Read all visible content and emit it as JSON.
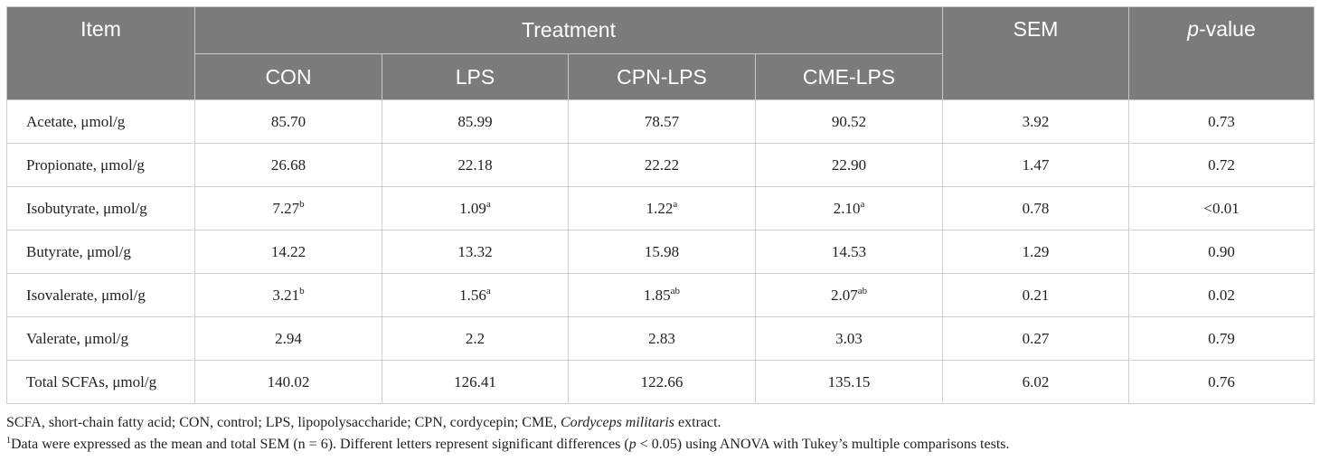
{
  "header": {
    "item": "Item",
    "treatment": "Treatment",
    "sem": "SEM",
    "pvalue_italic": "p",
    "pvalue_rest": "-value",
    "groups": [
      "CON",
      "LPS",
      "CPN-LPS",
      "CME-LPS"
    ]
  },
  "rows": [
    {
      "item": "Acetate, μmol/g",
      "values": [
        {
          "v": "85.70",
          "s": ""
        },
        {
          "v": "85.99",
          "s": ""
        },
        {
          "v": "78.57",
          "s": ""
        },
        {
          "v": "90.52",
          "s": ""
        }
      ],
      "sem": "3.92",
      "p": "0.73"
    },
    {
      "item": "Propionate, μmol/g",
      "values": [
        {
          "v": "26.68",
          "s": ""
        },
        {
          "v": "22.18",
          "s": ""
        },
        {
          "v": "22.22",
          "s": ""
        },
        {
          "v": "22.90",
          "s": ""
        }
      ],
      "sem": "1.47",
      "p": "0.72"
    },
    {
      "item": "Isobutyrate, μmol/g",
      "values": [
        {
          "v": "7.27",
          "s": "b"
        },
        {
          "v": "1.09",
          "s": "a"
        },
        {
          "v": "1.22",
          "s": "a"
        },
        {
          "v": "2.10",
          "s": "a"
        }
      ],
      "sem": "0.78",
      "p": "<0.01"
    },
    {
      "item": "Butyrate, μmol/g",
      "values": [
        {
          "v": "14.22",
          "s": ""
        },
        {
          "v": "13.32",
          "s": ""
        },
        {
          "v": "15.98",
          "s": ""
        },
        {
          "v": "14.53",
          "s": ""
        }
      ],
      "sem": "1.29",
      "p": "0.90"
    },
    {
      "item": "Isovalerate, μmol/g",
      "values": [
        {
          "v": "3.21",
          "s": "b"
        },
        {
          "v": "1.56",
          "s": "a"
        },
        {
          "v": "1.85",
          "s": "ab"
        },
        {
          "v": "2.07",
          "s": "ab"
        }
      ],
      "sem": "0.21",
      "p": "0.02"
    },
    {
      "item": "Valerate, μmol/g",
      "values": [
        {
          "v": "2.94",
          "s": ""
        },
        {
          "v": "2.2",
          "s": ""
        },
        {
          "v": "2.83",
          "s": ""
        },
        {
          "v": "3.03",
          "s": ""
        }
      ],
      "sem": "0.27",
      "p": "0.79"
    },
    {
      "item": "Total SCFAs, μmol/g",
      "values": [
        {
          "v": "140.02",
          "s": ""
        },
        {
          "v": "126.41",
          "s": ""
        },
        {
          "v": "122.66",
          "s": ""
        },
        {
          "v": "135.15",
          "s": ""
        }
      ],
      "sem": "6.02",
      "p": "0.76"
    }
  ],
  "notes": {
    "line1_a": "SCFA, short-chain fatty acid; CON, control; LPS, lipopolysaccharide; CPN, cordycepin; CME, ",
    "line1_italic": "Cordyceps militaris",
    "line1_b": " extract.",
    "line2_sup": "1",
    "line2_a": "Data were expressed as the mean and total SEM (n = 6). Different letters represent significant differences (",
    "line2_italic": "p",
    "line2_b": " < 0.05) using ANOVA with Tukey’s multiple comparisons tests."
  }
}
